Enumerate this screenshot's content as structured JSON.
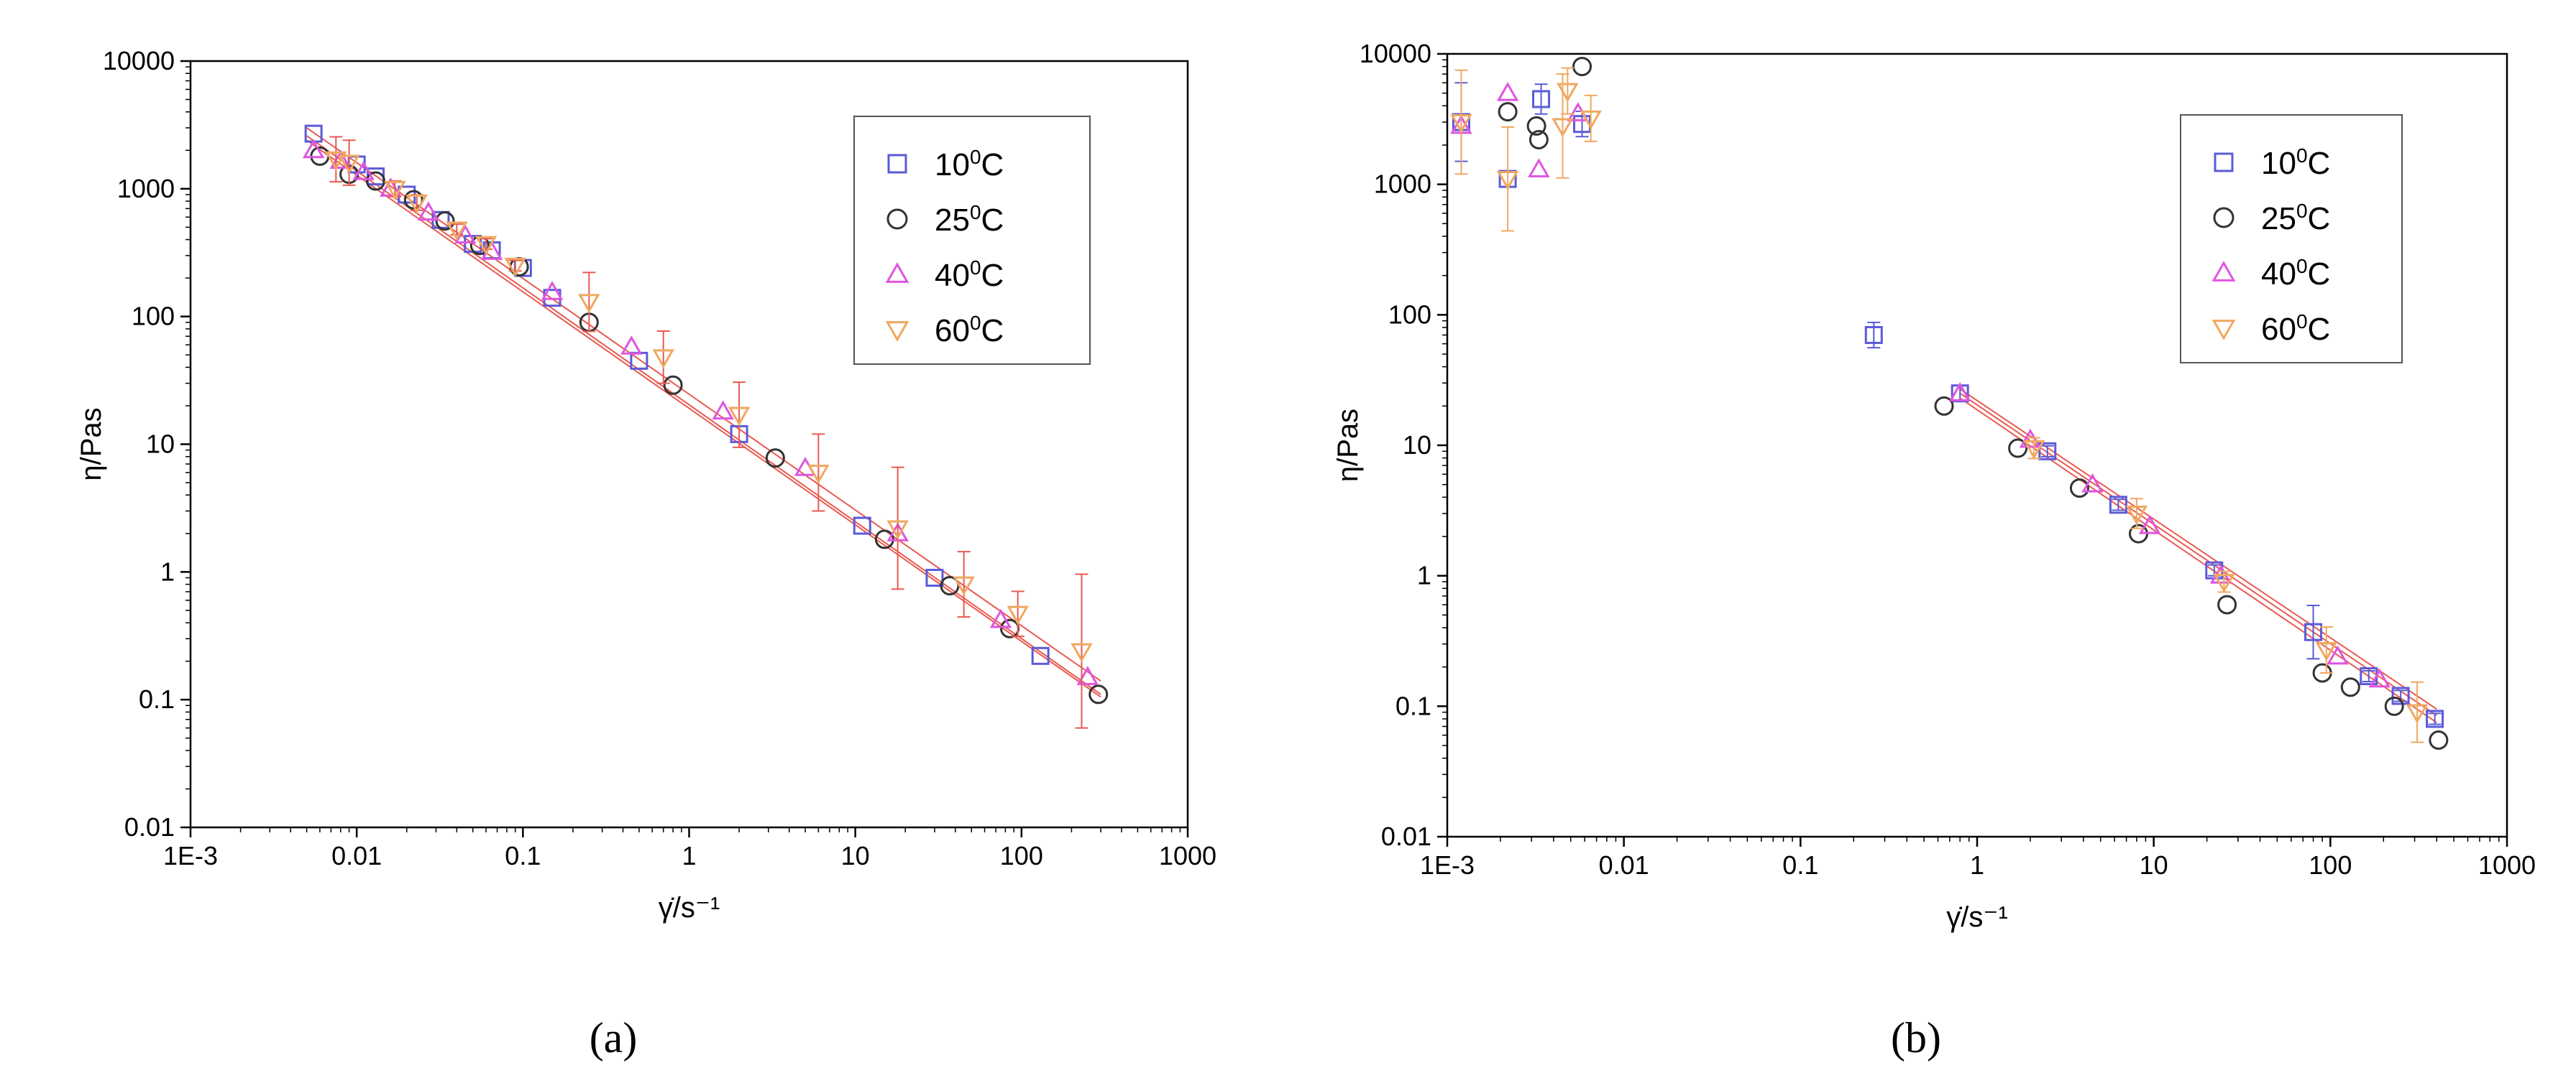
{
  "colors": {
    "series_10C": "#5b5bd9",
    "series_25C": "#333333",
    "series_40C": "#e055e0",
    "series_60C": "#f0a860",
    "fit_line": "#e85a50",
    "error_bar": "#e85a50"
  },
  "chart_data": [
    {
      "type": "scatter",
      "panel_label": "(a)",
      "xlabel": "γ̇/s⁻¹",
      "ylabel": "η/Pas",
      "xscale": "log",
      "yscale": "log",
      "xlim": [
        0.001,
        1000
      ],
      "ylim": [
        0.01,
        10000
      ],
      "x_tick_labels": [
        "1E-3",
        "0.01",
        "0.1",
        "1",
        "10",
        "100",
        "1000"
      ],
      "y_tick_labels": [
        "0.01",
        "0.1",
        "1",
        "10",
        "100",
        "1000",
        "10000"
      ],
      "legend_position": "top-right",
      "legend": [
        {
          "base": "10",
          "sup": "0",
          "unit": "C",
          "marker": "square"
        },
        {
          "base": "25",
          "sup": "0",
          "unit": "C",
          "marker": "circle"
        },
        {
          "base": "40",
          "sup": "0",
          "unit": "C",
          "marker": "triangle-up"
        },
        {
          "base": "60",
          "sup": "0",
          "unit": "C",
          "marker": "triangle-down"
        }
      ],
      "series": [
        {
          "name": "10°C",
          "marker": "square",
          "x": [
            0.0055,
            0.01,
            0.013,
            0.02,
            0.032,
            0.05,
            0.065,
            0.1,
            0.15,
            0.5,
            2.0,
            11,
            30,
            130
          ],
          "y": [
            2700,
            1550,
            1250,
            900,
            570,
            370,
            330,
            240,
            140,
            45,
            12,
            2.3,
            0.9,
            0.22
          ]
        },
        {
          "name": "25°C",
          "marker": "circle",
          "x": [
            0.006,
            0.009,
            0.013,
            0.022,
            0.034,
            0.055,
            0.095,
            0.25,
            0.8,
            3.3,
            15,
            37,
            85,
            290
          ],
          "y": [
            1800,
            1300,
            1150,
            820,
            560,
            360,
            245,
            90,
            29,
            7.8,
            1.8,
            0.78,
            0.36,
            0.11
          ]
        },
        {
          "name": "40°C",
          "marker": "triangle-up",
          "x": [
            0.0055,
            0.008,
            0.011,
            0.016,
            0.027,
            0.045,
            0.065,
            0.15,
            0.45,
            1.6,
            5.0,
            18,
            75,
            250
          ],
          "y": [
            2000,
            1650,
            1350,
            1000,
            650,
            430,
            320,
            155,
            58,
            18,
            6.5,
            2.0,
            0.42,
            0.15
          ]
        },
        {
          "name": "60°C",
          "marker": "triangle-down",
          "x": [
            0.0075,
            0.009,
            0.017,
            0.023,
            0.04,
            0.06,
            0.09,
            0.25,
            0.7,
            2.0,
            6.0,
            18,
            45,
            95,
            230
          ],
          "y": [
            1700,
            1600,
            1000,
            780,
            480,
            370,
            250,
            130,
            48,
            17,
            6.0,
            2.2,
            0.8,
            0.47,
            0.24
          ],
          "err": [
            1.5,
            1.5,
            1.15,
            1.15,
            1.1,
            1.1,
            1.1,
            1.7,
            1.6,
            1.8,
            2.0,
            3.0,
            1.8,
            1.5,
            4.0
          ]
        }
      ],
      "fit_lines": [
        {
          "x": [
            0.005,
            300
          ],
          "y": [
            2600,
            0.11
          ]
        },
        {
          "x": [
            0.005,
            300
          ],
          "y": [
            2400,
            0.105
          ]
        },
        {
          "x": [
            0.005,
            300
          ],
          "y": [
            3000,
            0.14
          ]
        }
      ]
    },
    {
      "type": "scatter",
      "panel_label": "(b)",
      "xlabel": "γ̇/s⁻¹",
      "ylabel": "η/Pas",
      "xscale": "log",
      "yscale": "log",
      "xlim": [
        0.001,
        1000
      ],
      "ylim": [
        0.01,
        10000
      ],
      "x_tick_labels": [
        "1E-3",
        "0.01",
        "0.1",
        "1",
        "10",
        "100",
        "1000"
      ],
      "y_tick_labels": [
        "0.01",
        "0.1",
        "1",
        "10",
        "100",
        "1000",
        "10000"
      ],
      "legend_position": "top-right",
      "legend": [
        {
          "base": "10",
          "sup": "0",
          "unit": "C",
          "marker": "square"
        },
        {
          "base": "25",
          "sup": "0",
          "unit": "C",
          "marker": "circle"
        },
        {
          "base": "40",
          "sup": "0",
          "unit": "C",
          "marker": "triangle-up"
        },
        {
          "base": "60",
          "sup": "0",
          "unit": "C",
          "marker": "triangle-down"
        }
      ],
      "series": [
        {
          "name": "10°C",
          "marker": "square",
          "x": [
            0.0012,
            0.0022,
            0.0034,
            0.0058,
            0.26,
            0.8,
            2.5,
            6.3,
            22,
            80,
            165,
            250,
            390
          ],
          "y": [
            3000,
            1100,
            4500,
            2900,
            70,
            25,
            9,
            3.5,
            1.1,
            0.37,
            0.17,
            0.12,
            0.08
          ],
          "err": [
            2.0,
            1.0,
            1.3,
            1.25,
            1.25,
            1.15,
            1.1,
            1.1,
            1.1,
            1.6,
            1.1,
            1.1,
            1.1
          ]
        },
        {
          "name": "25°C",
          "marker": "circle",
          "x": [
            0.0022,
            0.0032,
            0.0033,
            0.0058,
            0.65,
            1.7,
            3.8,
            8.2,
            26,
            90,
            130,
            230,
            410
          ],
          "y": [
            3600,
            2800,
            2200,
            8000,
            20,
            9.5,
            4.7,
            2.1,
            0.6,
            0.18,
            0.14,
            0.1,
            0.055
          ]
        },
        {
          "name": "40°C",
          "marker": "triangle-up",
          "x": [
            0.0012,
            0.0022,
            0.0033,
            0.0055,
            0.8,
            2.0,
            4.5,
            9.5,
            24,
            110,
            190
          ],
          "y": [
            2800,
            5000,
            1300,
            3500,
            25,
            11,
            5,
            2.4,
            1.0,
            0.24,
            0.16
          ]
        },
        {
          "name": "60°C",
          "marker": "triangle-down",
          "x": [
            0.0012,
            0.0022,
            0.0045,
            0.0048,
            0.0065,
            2.1,
            8.0,
            25,
            95,
            310
          ],
          "y": [
            3000,
            1100,
            2800,
            5200,
            3200,
            9.5,
            3.0,
            0.9,
            0.27,
            0.09
          ],
          "err": [
            2.5,
            2.5,
            2.5,
            1.5,
            1.5,
            1.2,
            1.3,
            1.2,
            1.5,
            1.7
          ]
        }
      ],
      "fit_lines": [
        {
          "x": [
            0.8,
            400
          ],
          "y": [
            25,
            0.085
          ]
        },
        {
          "x": [
            0.8,
            400
          ],
          "y": [
            23,
            0.075
          ]
        },
        {
          "x": [
            0.8,
            400
          ],
          "y": [
            27,
            0.095
          ]
        }
      ]
    }
  ]
}
